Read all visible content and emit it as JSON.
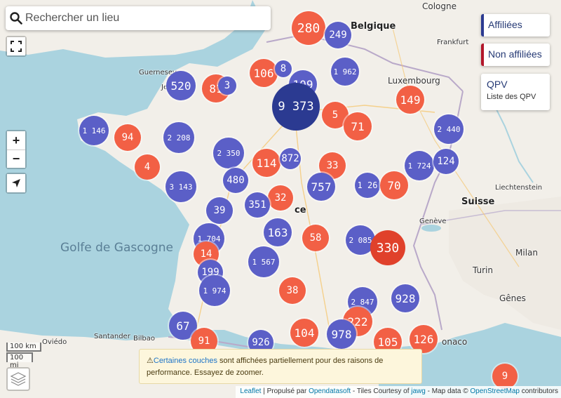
{
  "search": {
    "placeholder": "Rechercher un lieu"
  },
  "zoom": {
    "in_label": "+",
    "out_label": "−"
  },
  "legend": {
    "affiliees": "Affiliées",
    "non_affiliees": "Non affiliées",
    "qpv_title": "QPV",
    "qpv_sub": "Liste des QPV"
  },
  "scale": {
    "km": "100 km",
    "mi": "100 mi"
  },
  "warning": {
    "icon": "⚠",
    "link": "Certaines couches",
    "text": " sont affichées partiellement pour des raisons de performance. Essayez de zoomer."
  },
  "attribution": {
    "leaflet": "Leaflet",
    "sep1": " | Propulsé par ",
    "ods": "Opendatasoft",
    "tiles": " - Tiles Courtesy of ",
    "jawg": "jawg",
    "mapdata": " - Map data © ",
    "osm": "OpenStreetMap",
    "contrib": " contributors"
  },
  "places": {
    "cologne": "Cologne",
    "belgique": "Belgique",
    "frankfurt": "Frankfurt",
    "luxembourg": "Luxembourg",
    "guernesey": "Guernesey",
    "jersey": "Jersey",
    "suisse": "Suisse",
    "liechtenstein": "Liechtenstein",
    "geneve": "Genève",
    "milan": "Milan",
    "turin": "Turin",
    "genes": "Gênes",
    "golfe": "Golfe de Gascogne",
    "oviedo": "Oviédo",
    "santander": "Santander",
    "bilbao": "Bilbao",
    "fr": "ce",
    "monaco": "onaco"
  },
  "clusters": [
    {
      "n": "280",
      "c": "red"
    },
    {
      "n": "249",
      "c": "blue"
    },
    {
      "n": "1 962",
      "c": "blue"
    },
    {
      "n": "106",
      "c": "red"
    },
    {
      "n": "8",
      "c": "blue"
    },
    {
      "n": "109",
      "c": "blue"
    },
    {
      "n": "520",
      "c": "blue"
    },
    {
      "n": "81",
      "c": "red"
    },
    {
      "n": "3",
      "c": "blue"
    },
    {
      "n": "9 373",
      "c": "big"
    },
    {
      "n": "5",
      "c": "red"
    },
    {
      "n": "71",
      "c": "red"
    },
    {
      "n": "149",
      "c": "red"
    },
    {
      "n": "1 146",
      "c": "blue"
    },
    {
      "n": "94",
      "c": "red"
    },
    {
      "n": "2 208",
      "c": "blue"
    },
    {
      "n": "2 350",
      "c": "blue"
    },
    {
      "n": "114",
      "c": "red"
    },
    {
      "n": "872",
      "c": "blue"
    },
    {
      "n": "33",
      "c": "red"
    },
    {
      "n": "2 440",
      "c": "blue"
    },
    {
      "n": "1 724",
      "c": "blue"
    },
    {
      "n": "124",
      "c": "blue"
    },
    {
      "n": "4",
      "c": "red"
    },
    {
      "n": "3 143",
      "c": "blue"
    },
    {
      "n": "480",
      "c": "blue"
    },
    {
      "n": "32",
      "c": "red"
    },
    {
      "n": "757",
      "c": "blue"
    },
    {
      "n": "1 26",
      "c": "blue"
    },
    {
      "n": "70",
      "c": "red"
    },
    {
      "n": "39",
      "c": "blue"
    },
    {
      "n": "351",
      "c": "blue"
    },
    {
      "n": "163",
      "c": "blue"
    },
    {
      "n": "58",
      "c": "red"
    },
    {
      "n": "2 085",
      "c": "blue"
    },
    {
      "n": "330",
      "c": "darkred"
    },
    {
      "n": "1 704",
      "c": "blue"
    },
    {
      "n": "14",
      "c": "red"
    },
    {
      "n": "1 567",
      "c": "blue"
    },
    {
      "n": "199",
      "c": "blue"
    },
    {
      "n": "1 974",
      "c": "blue"
    },
    {
      "n": "38",
      "c": "red"
    },
    {
      "n": "2 847",
      "c": "blue"
    },
    {
      "n": "928",
      "c": "blue"
    },
    {
      "n": "222",
      "c": "red"
    },
    {
      "n": "67",
      "c": "blue"
    },
    {
      "n": "91",
      "c": "red"
    },
    {
      "n": "926",
      "c": "blue"
    },
    {
      "n": "104",
      "c": "red"
    },
    {
      "n": "978",
      "c": "blue"
    },
    {
      "n": "105",
      "c": "red"
    },
    {
      "n": "126",
      "c": "red"
    },
    {
      "n": "9",
      "c": "red"
    }
  ]
}
